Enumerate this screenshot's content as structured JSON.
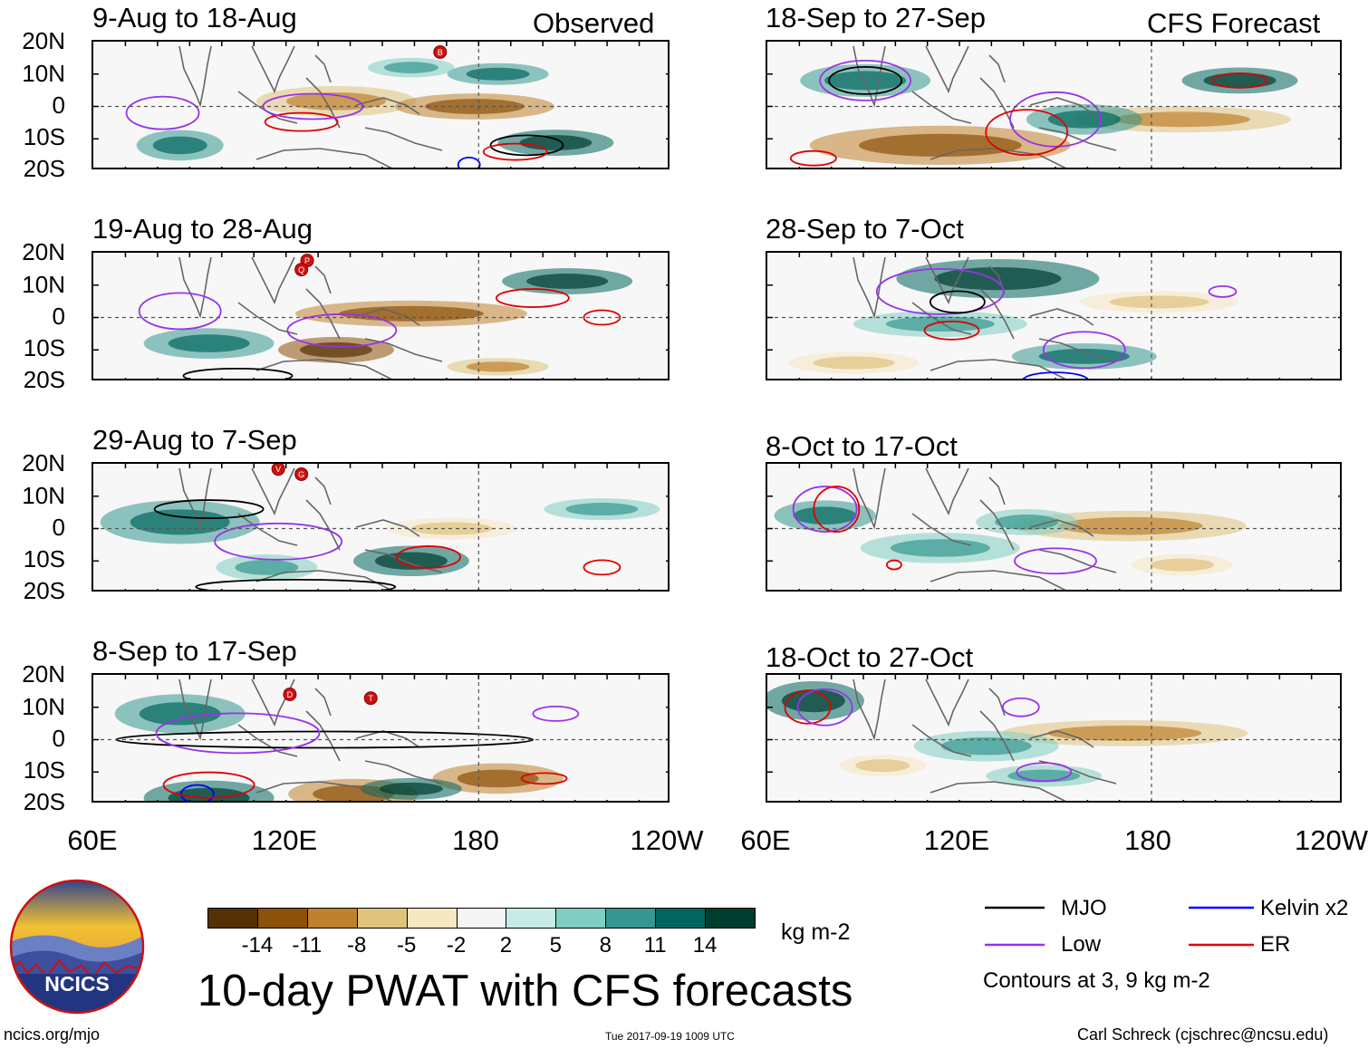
{
  "chart_data": {
    "type": "heatmap",
    "title": "10-day PWAT with CFS forecasts",
    "column_titles": {
      "left": "Observed",
      "right": "CFS Forecast"
    },
    "lat_ticks": [
      "20N",
      "10N",
      "0",
      "10S",
      "20S"
    ],
    "lon_ticks": [
      "60E",
      "120E",
      "180",
      "120W"
    ],
    "lat_range": [
      -20,
      20
    ],
    "lon_range": [
      60,
      240
    ],
    "panels": [
      {
        "column": "left",
        "title": "9-Aug to 18-Aug"
      },
      {
        "column": "left",
        "title": "19-Aug to 28-Aug"
      },
      {
        "column": "left",
        "title": "29-Aug to 7-Sep"
      },
      {
        "column": "left",
        "title": "8-Sep to 17-Sep"
      },
      {
        "column": "right",
        "title": "18-Sep to 27-Sep"
      },
      {
        "column": "right",
        "title": "28-Sep to 7-Oct"
      },
      {
        "column": "right",
        "title": "8-Oct to 17-Oct"
      },
      {
        "column": "right",
        "title": "18-Oct to 27-Oct"
      }
    ],
    "storm_markers": [
      {
        "panel": 0,
        "label": "B"
      },
      {
        "panel": 1,
        "label": "P"
      },
      {
        "panel": 1,
        "label": "Q"
      },
      {
        "panel": 2,
        "label": "V"
      },
      {
        "panel": 2,
        "label": "G"
      },
      {
        "panel": 3,
        "label": "D"
      },
      {
        "panel": 3,
        "label": "T"
      }
    ],
    "colorbar": {
      "units": "kg m-2",
      "ticks": [
        "-14",
        "-11",
        "-8",
        "-5",
        "-2",
        "2",
        "5",
        "8",
        "11",
        "14"
      ],
      "colors": [
        "#543005",
        "#8c510a",
        "#bf812d",
        "#dfc27d",
        "#f6e8c3",
        "#f5f5f5",
        "#c7eae5",
        "#80cdc1",
        "#35978f",
        "#01665e",
        "#003c30"
      ]
    },
    "legend": {
      "items": [
        {
          "label": "MJO",
          "color": "#000000"
        },
        {
          "label": "Kelvin x2",
          "color": "#0000ff"
        },
        {
          "label": "Low",
          "color": "#9932ea"
        },
        {
          "label": "ER",
          "color": "#e00000"
        }
      ],
      "note": "Contours at 3, 9 kg m-2"
    }
  },
  "footer": {
    "logo_text": "NCICS",
    "url": "ncics.org/mjo",
    "timestamp": "Tue 2017-09-19 1009 UTC",
    "author": "Carl Schreck (cjschrec@ncsu.edu)"
  }
}
